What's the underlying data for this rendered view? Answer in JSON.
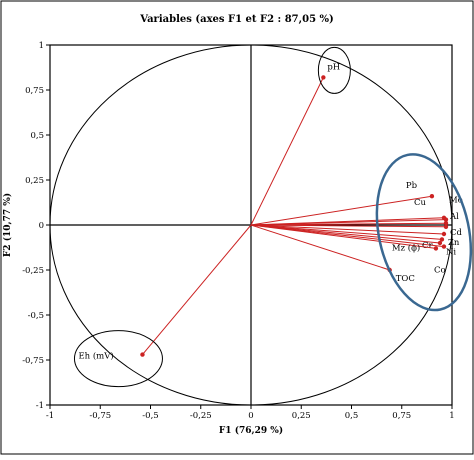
{
  "chart_data": {
    "type": "scatter",
    "title": "Variables (axes F1 et F2 : 87,05 %)",
    "xlabel": "F1 (76,29 %)",
    "ylabel": "F2 (10,77 %)",
    "xlim": [
      -1,
      1
    ],
    "ylim": [
      -1,
      1
    ],
    "x_ticks": [
      "-1",
      "-0,75",
      "-0,5",
      "-0,25",
      "0",
      "0,25",
      "0,5",
      "0,75",
      "1"
    ],
    "y_ticks": [
      "1",
      "0,75",
      "0,5",
      "0,25",
      "0",
      "-0,25",
      "-0,5",
      "-0,75",
      "-1"
    ],
    "unit_circle": true,
    "points": [
      {
        "label": "pH",
        "x": 0.36,
        "y": 0.82
      },
      {
        "label": "Pb",
        "x": 0.9,
        "y": 0.16
      },
      {
        "label": "Cu",
        "x": 0.96,
        "y": 0.04
      },
      {
        "label": "Mo",
        "x": 0.97,
        "y": 0.03
      },
      {
        "label": "Al",
        "x": 0.97,
        "y": 0.01
      },
      {
        "label": "Cd",
        "x": 0.97,
        "y": -0.01
      },
      {
        "label": "Zn",
        "x": 0.96,
        "y": -0.05
      },
      {
        "label": "Ni",
        "x": 0.95,
        "y": -0.08
      },
      {
        "label": "Co",
        "x": 0.96,
        "y": -0.12
      },
      {
        "label": "Cr",
        "x": 0.94,
        "y": -0.1
      },
      {
        "label": "Mz (ϕ)",
        "x": 0.92,
        "y": -0.13
      },
      {
        "label": "TOC",
        "x": 0.69,
        "y": -0.25
      },
      {
        "label": "Eh (mV)",
        "x": -0.54,
        "y": -0.72
      }
    ],
    "colors": {
      "vector": "#cc2222",
      "group_ellipse": "#3a6891",
      "axis": "#000000"
    }
  }
}
